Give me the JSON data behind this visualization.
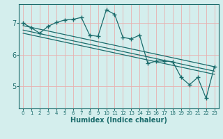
{
  "xlabel": "Humidex (Indice chaleur)",
  "bg_color": "#d4eeed",
  "grid_color": "#e8b0b0",
  "line_color": "#1a6b6b",
  "xlim": [
    -0.5,
    23.5
  ],
  "ylim": [
    4.3,
    7.6
  ],
  "yticks": [
    5,
    6,
    7
  ],
  "xticks": [
    0,
    1,
    2,
    3,
    4,
    5,
    6,
    7,
    8,
    9,
    10,
    11,
    12,
    13,
    14,
    15,
    16,
    17,
    18,
    19,
    20,
    21,
    22,
    23
  ],
  "line1_x": [
    0,
    1,
    2,
    3,
    4,
    5,
    6,
    7,
    8,
    9,
    10,
    11,
    12,
    13,
    14,
    15,
    16,
    17,
    18,
    19,
    20,
    21,
    22,
    23
  ],
  "line1_y": [
    7.0,
    6.85,
    6.68,
    6.9,
    7.02,
    7.1,
    7.12,
    7.18,
    6.62,
    6.58,
    7.42,
    7.28,
    6.55,
    6.5,
    6.62,
    5.72,
    5.8,
    5.8,
    5.78,
    5.28,
    5.05,
    5.28,
    4.62,
    5.62
  ],
  "line2_x": [
    0,
    23
  ],
  "line2_y": [
    6.92,
    5.62
  ],
  "line3_x": [
    0,
    23
  ],
  "line3_y": [
    6.78,
    5.48
  ],
  "line4_x": [
    0,
    23
  ],
  "line4_y": [
    6.68,
    5.38
  ]
}
